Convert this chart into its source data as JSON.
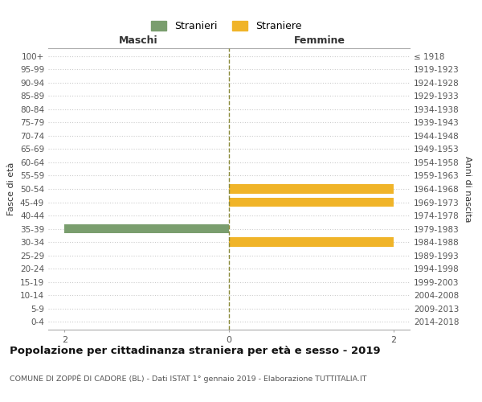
{
  "age_groups": [
    "100+",
    "95-99",
    "90-94",
    "85-89",
    "80-84",
    "75-79",
    "70-74",
    "65-69",
    "60-64",
    "55-59",
    "50-54",
    "45-49",
    "40-44",
    "35-39",
    "30-34",
    "25-29",
    "20-24",
    "15-19",
    "10-14",
    "5-9",
    "0-4"
  ],
  "anni_nascita": [
    "≤ 1918",
    "1919-1923",
    "1924-1928",
    "1929-1933",
    "1934-1938",
    "1939-1943",
    "1944-1948",
    "1949-1953",
    "1954-1958",
    "1959-1963",
    "1964-1968",
    "1969-1973",
    "1974-1978",
    "1979-1983",
    "1984-1988",
    "1989-1993",
    "1994-1998",
    "1999-2003",
    "2004-2008",
    "2009-2013",
    "2014-2018"
  ],
  "maschi": [
    0,
    0,
    0,
    0,
    0,
    0,
    0,
    0,
    0,
    0,
    0,
    0,
    0,
    2,
    0,
    0,
    0,
    0,
    0,
    0,
    0
  ],
  "femmine": [
    0,
    0,
    0,
    0,
    0,
    0,
    0,
    0,
    0,
    0,
    2,
    2,
    0,
    0,
    2,
    0,
    0,
    0,
    0,
    0,
    0
  ],
  "maschi_color": "#7a9e6e",
  "femmine_color": "#f0b429",
  "center_line_color": "#8a8a3a",
  "grid_color": "#cccccc",
  "bg_color": "#ffffff",
  "title": "Popolazione per cittadinanza straniera per età e sesso - 2019",
  "subtitle": "COMUNE DI ZOPPÈ DI CADORE (BL) - Dati ISTAT 1° gennaio 2019 - Elaborazione TUTTITALIA.IT",
  "header_left": "Maschi",
  "header_right": "Femmine",
  "ylabel_left": "Fasce di età",
  "ylabel_right": "Anni di nascita",
  "legend_maschi": "Stranieri",
  "legend_femmine": "Straniere",
  "xlim": 2.2,
  "xtick_vals": [
    -2,
    0,
    2
  ],
  "xticklabels": [
    "2",
    "0",
    "2"
  ],
  "bar_height": 0.72
}
